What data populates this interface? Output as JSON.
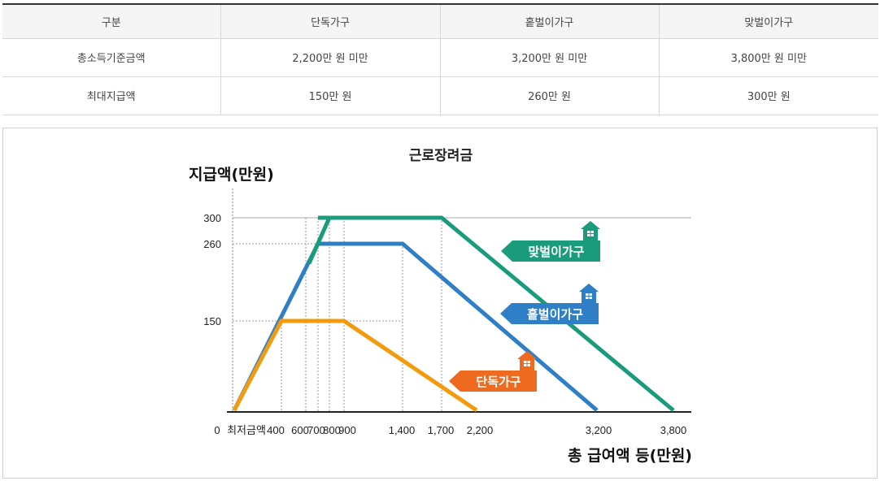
{
  "table": {
    "headers": [
      "구분",
      "단독가구",
      "홑벌이가구",
      "맞벌이가구"
    ],
    "rows": [
      [
        "총소득기준금액",
        "2,200만 원 미만",
        "3,200만 원 미만",
        "3,800만 원 미만"
      ],
      [
        "최대지급액",
        "150만 원",
        "260만 원",
        "300만 원"
      ]
    ]
  },
  "chart_data": {
    "type": "line",
    "title": "근로장려금",
    "ylabel": "지급액(만원)",
    "xlabel": "총 급여액 등(만원)",
    "x_tick_labels": [
      "0",
      "최저금액",
      "400",
      "600",
      "700",
      "800",
      "900",
      "1,400",
      "1,700",
      "2,200",
      "3,200",
      "3,800"
    ],
    "y_tick_labels": [
      "300",
      "260",
      "150"
    ],
    "ylim": [
      0,
      300
    ],
    "series": [
      {
        "name": "맞벌이가구",
        "color": "#1a9c7c",
        "points": [
          [
            700,
            300
          ],
          [
            1700,
            300
          ],
          [
            3800,
            0
          ]
        ]
      },
      {
        "name": "홑벌이가구",
        "color": "#2f7fc6",
        "points": [
          [
            0,
            0
          ],
          [
            700,
            260
          ],
          [
            1400,
            260
          ],
          [
            3200,
            0
          ]
        ]
      },
      {
        "name": "단독가구",
        "color": "#f39a0d",
        "points": [
          [
            0,
            0
          ],
          [
            400,
            150
          ],
          [
            900,
            150
          ],
          [
            2200,
            0
          ]
        ]
      }
    ],
    "legend": [
      {
        "label": "맞벌이가구",
        "color": "#1a9c7c"
      },
      {
        "label": "홑벌이가구",
        "color": "#2f7fc6"
      },
      {
        "label": "단독가구",
        "color": "#ee6a1f"
      }
    ],
    "grid_color": "#9a9a9a"
  }
}
